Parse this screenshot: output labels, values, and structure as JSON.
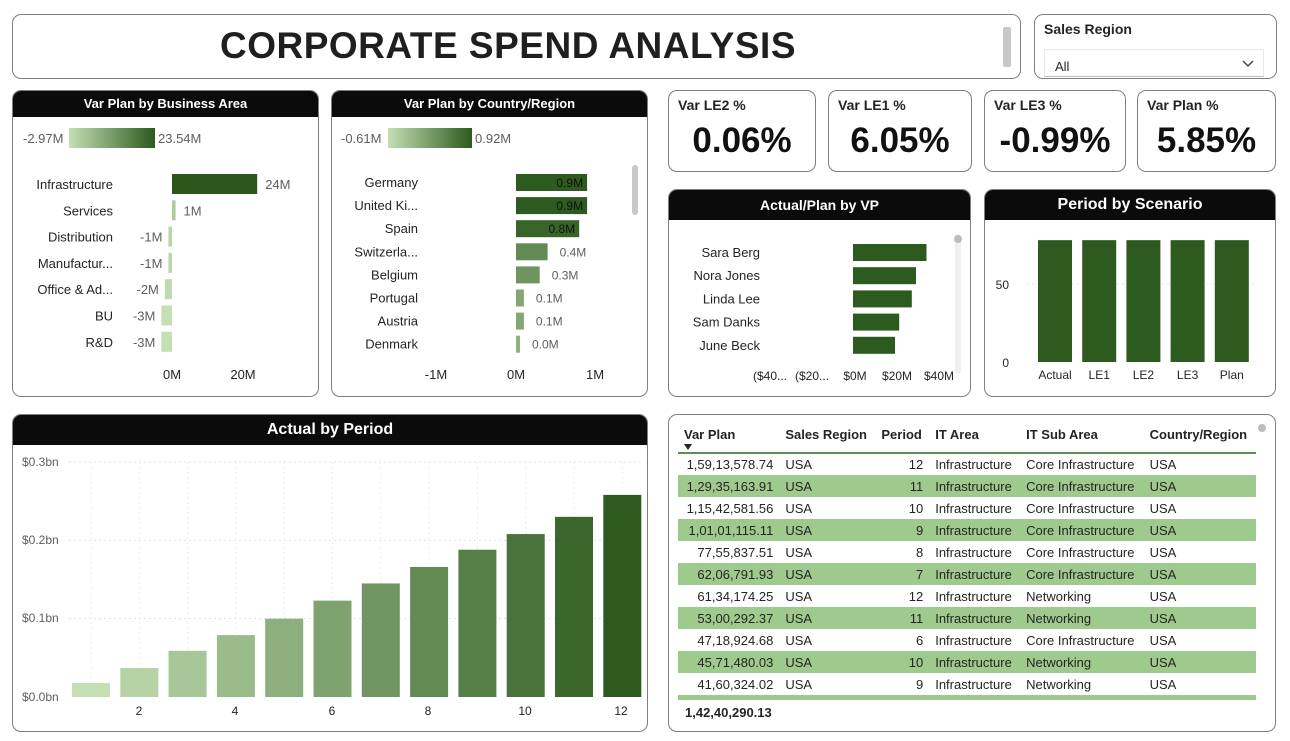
{
  "title": "CORPORATE SPEND ANALYSIS",
  "slicer": {
    "label": "Sales Region",
    "value": "All"
  },
  "business_area": {
    "title": "Var Plan by Business Area",
    "legend_min": "-2.97M",
    "legend_max": "23.54M",
    "x_ticks": [
      "0M",
      "20M"
    ],
    "chart_data": {
      "type": "bar",
      "orientation": "horizontal",
      "categories": [
        "Infrastructure",
        "Services",
        "Distribution",
        "Manufactur...",
        "Office & Ad...",
        "BU",
        "R&D"
      ],
      "values": [
        24,
        1,
        -1,
        -1,
        -2,
        -3,
        -3
      ],
      "labels": [
        "24M",
        "1M",
        "-1M",
        "-1M",
        "-2M",
        "-3M",
        "-3M"
      ],
      "xlim": [
        -2.97,
        23.54
      ]
    }
  },
  "country": {
    "title": "Var Plan by Country/Region",
    "legend_min": "-0.61M",
    "legend_max": "0.92M",
    "x_ticks": [
      "-1M",
      "0M",
      "1M"
    ],
    "chart_data": {
      "type": "bar",
      "orientation": "horizontal",
      "categories": [
        "Germany",
        "United Ki...",
        "Spain",
        "Switzerla...",
        "Belgium",
        "Portugal",
        "Austria",
        "Denmark"
      ],
      "values": [
        0.9,
        0.9,
        0.8,
        0.4,
        0.3,
        0.1,
        0.1,
        0.0
      ],
      "labels": [
        "0.9M",
        "0.9M",
        "0.8M",
        "0.4M",
        "0.3M",
        "0.1M",
        "0.1M",
        "0.0M"
      ],
      "xlim": [
        -1,
        1
      ]
    }
  },
  "kpis": [
    {
      "label": "Var LE2 %",
      "value": "0.06%"
    },
    {
      "label": "Var LE1 %",
      "value": "6.05%"
    },
    {
      "label": "Var LE3 %",
      "value": "-0.99%"
    },
    {
      "label": "Var Plan %",
      "value": "5.85%"
    }
  ],
  "vp": {
    "title": "Actual/Plan by VP",
    "x_ticks": [
      "($40...",
      "($20...",
      "$0M",
      "$20M",
      "$40M"
    ],
    "chart_data": {
      "type": "bar",
      "orientation": "horizontal",
      "categories": [
        "Sara Berg",
        "Nora Jones",
        "Linda Lee",
        "Sam Danks",
        "June Beck"
      ],
      "values": [
        35,
        30,
        28,
        22,
        20
      ],
      "xlim": [
        -40,
        40
      ]
    }
  },
  "scenario": {
    "title": "Period by Scenario",
    "y_ticks": [
      "50",
      "0"
    ],
    "chart_data": {
      "type": "bar",
      "categories": [
        "Actual",
        "LE1",
        "LE2",
        "LE3",
        "Plan"
      ],
      "values": [
        78,
        78,
        78,
        78,
        78
      ],
      "ylim": [
        0,
        80
      ]
    }
  },
  "period": {
    "title": "Actual by Period",
    "y_ticks": [
      "$0.3bn",
      "$0.2bn",
      "$0.1bn",
      "$0.0bn"
    ],
    "x_ticks": [
      "2",
      "4",
      "6",
      "8",
      "10",
      "12"
    ],
    "chart_data": {
      "type": "bar",
      "x": [
        1,
        2,
        3,
        4,
        5,
        6,
        7,
        8,
        9,
        10,
        11,
        12
      ],
      "values": [
        0.018,
        0.037,
        0.059,
        0.079,
        0.1,
        0.123,
        0.145,
        0.166,
        0.188,
        0.208,
        0.23,
        0.258
      ],
      "ylim": [
        0,
        0.3
      ]
    }
  },
  "table": {
    "columns": [
      "Var Plan",
      "Sales Region",
      "Period",
      "IT Area",
      "IT Sub Area",
      "Country/Region"
    ],
    "rows": [
      [
        "1,59,13,578.74",
        "USA",
        "12",
        "Infrastructure",
        "Core Infrastructure",
        "USA"
      ],
      [
        "1,29,35,163.91",
        "USA",
        "11",
        "Infrastructure",
        "Core Infrastructure",
        "USA"
      ],
      [
        "1,15,42,581.56",
        "USA",
        "10",
        "Infrastructure",
        "Core Infrastructure",
        "USA"
      ],
      [
        "1,01,01,115.11",
        "USA",
        "9",
        "Infrastructure",
        "Core Infrastructure",
        "USA"
      ],
      [
        "77,55,837.51",
        "USA",
        "8",
        "Infrastructure",
        "Core Infrastructure",
        "USA"
      ],
      [
        "62,06,791.93",
        "USA",
        "7",
        "Infrastructure",
        "Core Infrastructure",
        "USA"
      ],
      [
        "61,34,174.25",
        "USA",
        "12",
        "Infrastructure",
        "Networking",
        "USA"
      ],
      [
        "53,00,292.37",
        "USA",
        "11",
        "Infrastructure",
        "Networking",
        "USA"
      ],
      [
        "47,18,924.68",
        "USA",
        "6",
        "Infrastructure",
        "Core Infrastructure",
        "USA"
      ],
      [
        "45,71,480.03",
        "USA",
        "10",
        "Infrastructure",
        "Networking",
        "USA"
      ],
      [
        "41,60,324.02",
        "USA",
        "9",
        "Infrastructure",
        "Networking",
        "USA"
      ]
    ],
    "total": "1,42,40,290.13"
  },
  "colors": {
    "dark_green": "#2d5a1e",
    "light_green": "#c3dfb3",
    "row_highlight": "#9fca8d"
  }
}
